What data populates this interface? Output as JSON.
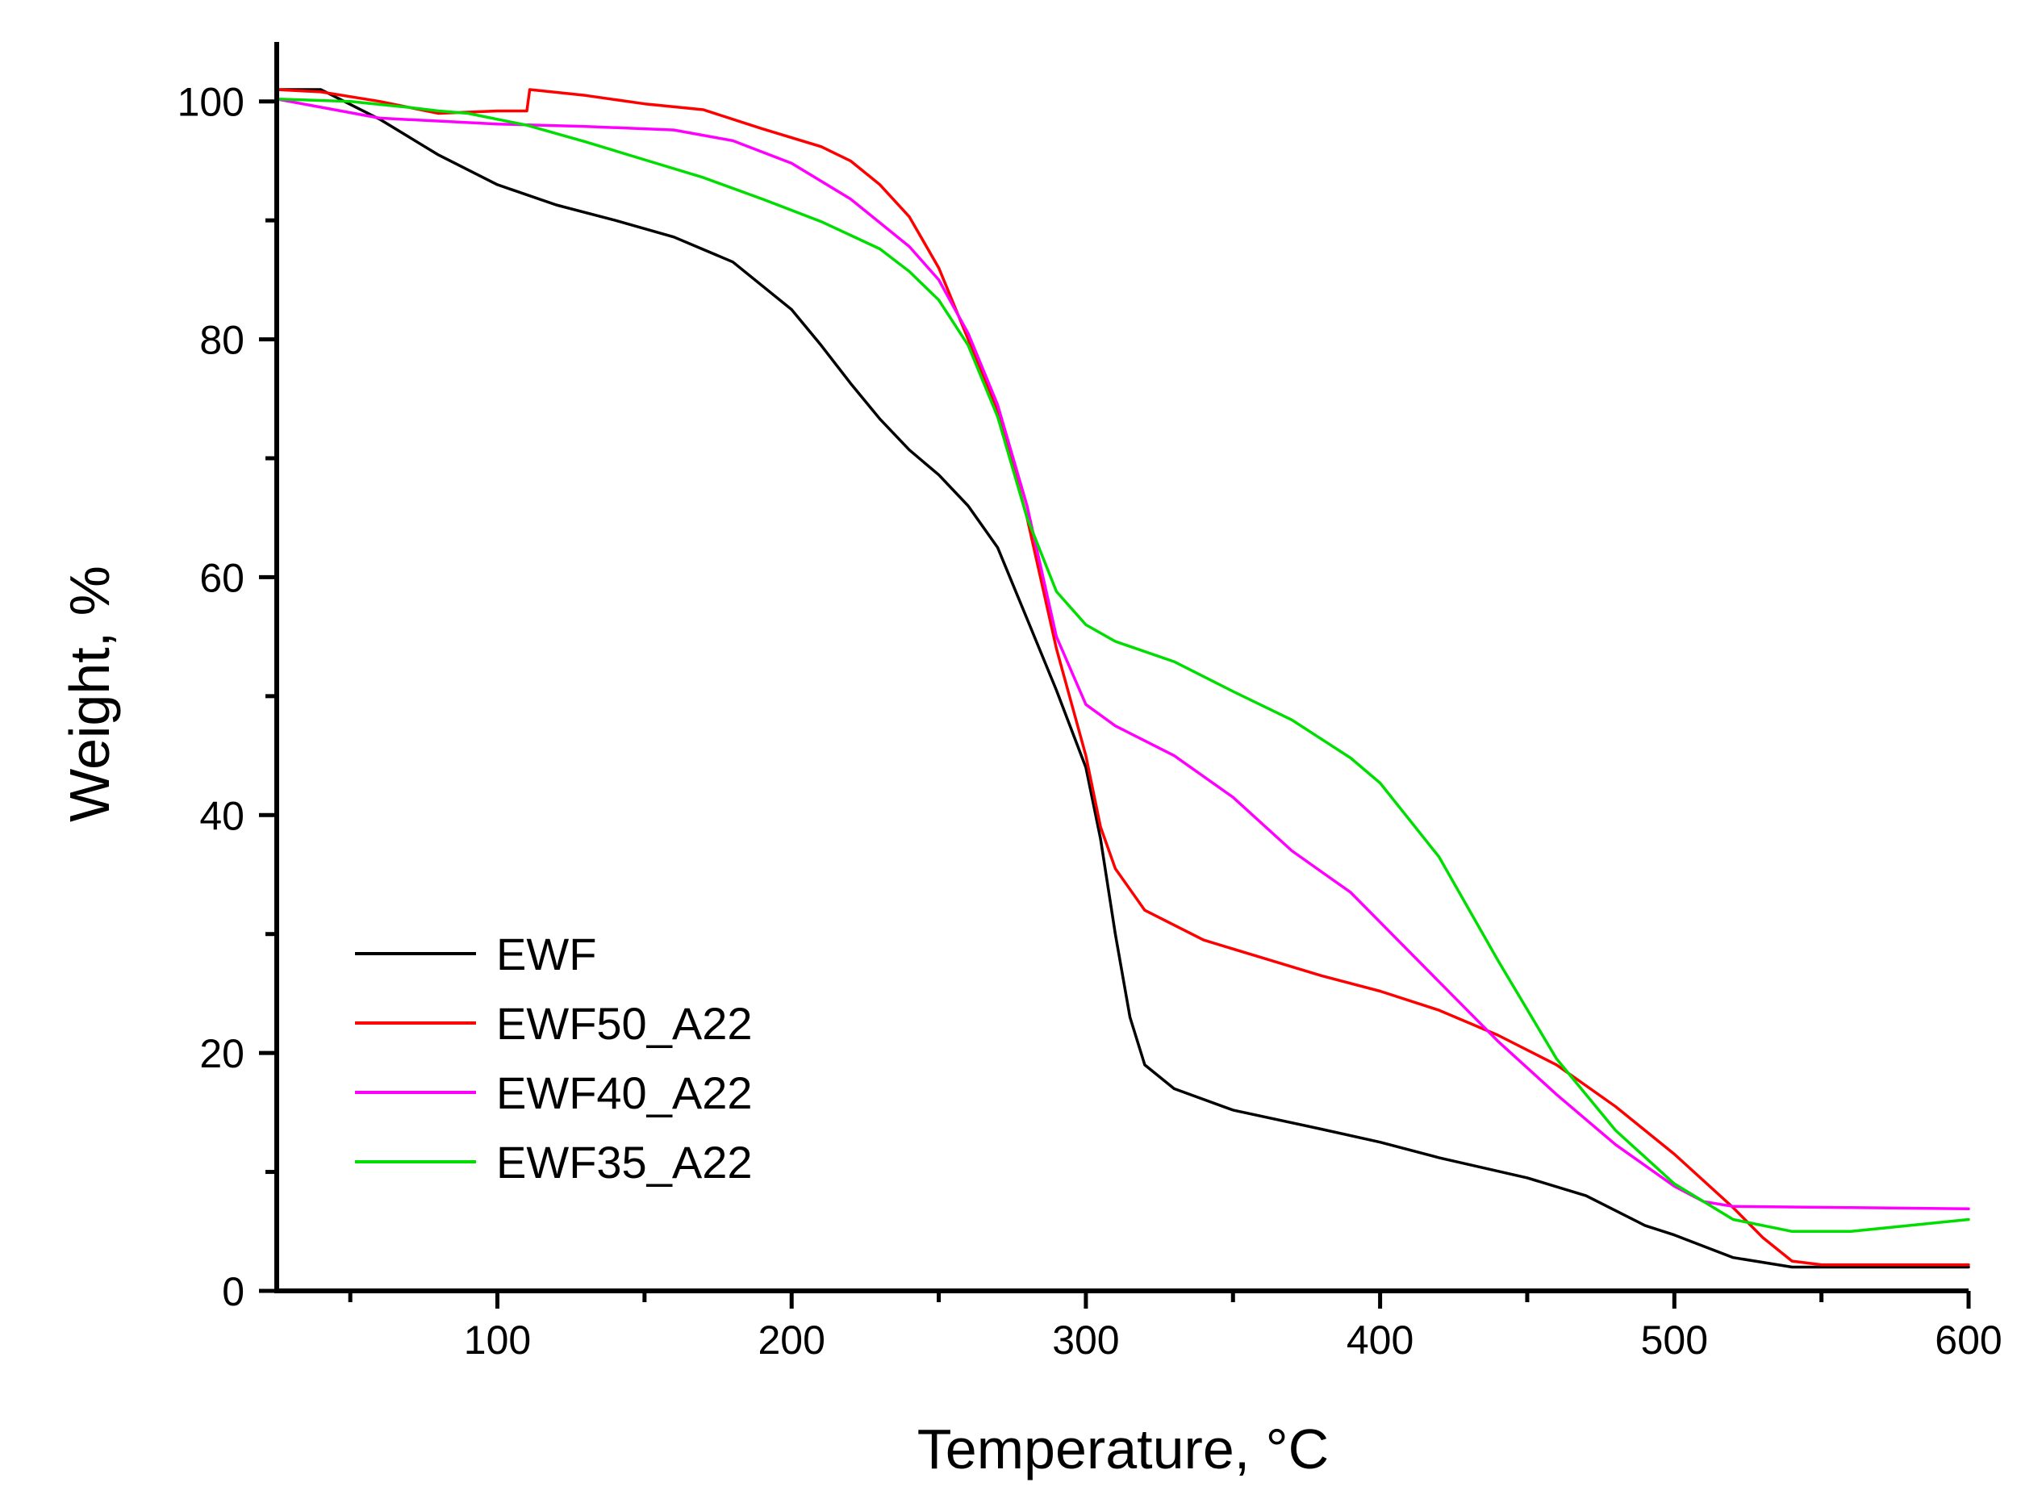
{
  "chart_data": {
    "type": "line",
    "title": "",
    "xlabel": "Temperature, °C",
    "ylabel": "Weight, %",
    "xlim": [
      25,
      600
    ],
    "ylim": [
      0,
      105
    ],
    "xticks": [
      100,
      200,
      300,
      400,
      500,
      600
    ],
    "xminor": [
      50,
      150,
      250,
      350,
      450,
      550
    ],
    "yticks": [
      0,
      20,
      40,
      60,
      80,
      100
    ],
    "yminor": [
      10,
      30,
      50,
      70,
      90
    ],
    "grid": false,
    "legend_position": "lower-left",
    "series": [
      {
        "name": "EWF",
        "color": "#000000",
        "points": [
          [
            25,
            101
          ],
          [
            40,
            101
          ],
          [
            60,
            98.5
          ],
          [
            80,
            95.5
          ],
          [
            100,
            93
          ],
          [
            120,
            91.3
          ],
          [
            140,
            90
          ],
          [
            160,
            88.6
          ],
          [
            180,
            86.5
          ],
          [
            200,
            82.5
          ],
          [
            210,
            79.5
          ],
          [
            220,
            76.3
          ],
          [
            230,
            73.3
          ],
          [
            240,
            70.7
          ],
          [
            250,
            68.6
          ],
          [
            260,
            66
          ],
          [
            270,
            62.5
          ],
          [
            280,
            56.5
          ],
          [
            290,
            50.5
          ],
          [
            300,
            44
          ],
          [
            305,
            38
          ],
          [
            310,
            30
          ],
          [
            315,
            23
          ],
          [
            320,
            19
          ],
          [
            330,
            17
          ],
          [
            350,
            15.2
          ],
          [
            380,
            13.6
          ],
          [
            400,
            12.5
          ],
          [
            420,
            11.2
          ],
          [
            450,
            9.5
          ],
          [
            470,
            8
          ],
          [
            490,
            5.5
          ],
          [
            500,
            4.7
          ],
          [
            520,
            2.8
          ],
          [
            540,
            2
          ],
          [
            560,
            2
          ],
          [
            600,
            2
          ]
        ]
      },
      {
        "name": "EWF50_A22",
        "color": "#ff0000",
        "points": [
          [
            25,
            101
          ],
          [
            40,
            100.8
          ],
          [
            60,
            100
          ],
          [
            80,
            99
          ],
          [
            100,
            99.2
          ],
          [
            110,
            99.2
          ],
          [
            111,
            101
          ],
          [
            130,
            100.5
          ],
          [
            150,
            99.8
          ],
          [
            170,
            99.3
          ],
          [
            190,
            97.7
          ],
          [
            210,
            96.2
          ],
          [
            220,
            95
          ],
          [
            230,
            93
          ],
          [
            240,
            90.3
          ],
          [
            250,
            86
          ],
          [
            260,
            80
          ],
          [
            270,
            74
          ],
          [
            280,
            65
          ],
          [
            290,
            54
          ],
          [
            300,
            45
          ],
          [
            305,
            39
          ],
          [
            310,
            35.5
          ],
          [
            320,
            32
          ],
          [
            340,
            29.5
          ],
          [
            360,
            28
          ],
          [
            380,
            26.5
          ],
          [
            400,
            25.2
          ],
          [
            420,
            23.6
          ],
          [
            440,
            21.5
          ],
          [
            460,
            19
          ],
          [
            480,
            15.5
          ],
          [
            500,
            11.5
          ],
          [
            520,
            7
          ],
          [
            530,
            4.5
          ],
          [
            540,
            2.5
          ],
          [
            550,
            2.2
          ],
          [
            600,
            2.2
          ]
        ]
      },
      {
        "name": "EWF40_A22",
        "color": "#ff00ff",
        "points": [
          [
            25,
            100.2
          ],
          [
            60,
            98.6
          ],
          [
            100,
            98.1
          ],
          [
            130,
            97.9
          ],
          [
            160,
            97.6
          ],
          [
            180,
            96.7
          ],
          [
            200,
            94.8
          ],
          [
            220,
            91.8
          ],
          [
            240,
            87.8
          ],
          [
            250,
            85
          ],
          [
            260,
            80.5
          ],
          [
            270,
            74.5
          ],
          [
            280,
            66
          ],
          [
            290,
            55
          ],
          [
            300,
            49.3
          ],
          [
            310,
            47.5
          ],
          [
            330,
            45
          ],
          [
            350,
            41.5
          ],
          [
            370,
            37
          ],
          [
            390,
            33.5
          ],
          [
            400,
            31
          ],
          [
            420,
            26
          ],
          [
            440,
            21
          ],
          [
            460,
            16.5
          ],
          [
            480,
            12.3
          ],
          [
            500,
            8.8
          ],
          [
            510,
            7.5
          ],
          [
            520,
            7.1
          ],
          [
            560,
            7
          ],
          [
            600,
            6.9
          ]
        ]
      },
      {
        "name": "EWF35_A22",
        "color": "#00dd00",
        "points": [
          [
            25,
            100.2
          ],
          [
            50,
            100
          ],
          [
            70,
            99.5
          ],
          [
            80,
            99.2
          ],
          [
            90,
            99
          ],
          [
            110,
            98
          ],
          [
            130,
            96.6
          ],
          [
            150,
            95.1
          ],
          [
            170,
            93.6
          ],
          [
            190,
            91.8
          ],
          [
            210,
            89.9
          ],
          [
            230,
            87.6
          ],
          [
            240,
            85.7
          ],
          [
            250,
            83.3
          ],
          [
            260,
            79.5
          ],
          [
            270,
            73.5
          ],
          [
            280,
            65
          ],
          [
            290,
            58.8
          ],
          [
            300,
            56
          ],
          [
            310,
            54.6
          ],
          [
            330,
            52.9
          ],
          [
            350,
            50.4
          ],
          [
            370,
            48
          ],
          [
            390,
            44.8
          ],
          [
            400,
            42.7
          ],
          [
            420,
            36.5
          ],
          [
            440,
            27.8
          ],
          [
            460,
            19.5
          ],
          [
            480,
            13.5
          ],
          [
            500,
            9
          ],
          [
            520,
            6
          ],
          [
            540,
            5
          ],
          [
            560,
            5
          ],
          [
            580,
            5.5
          ],
          [
            600,
            6
          ]
        ]
      }
    ]
  }
}
